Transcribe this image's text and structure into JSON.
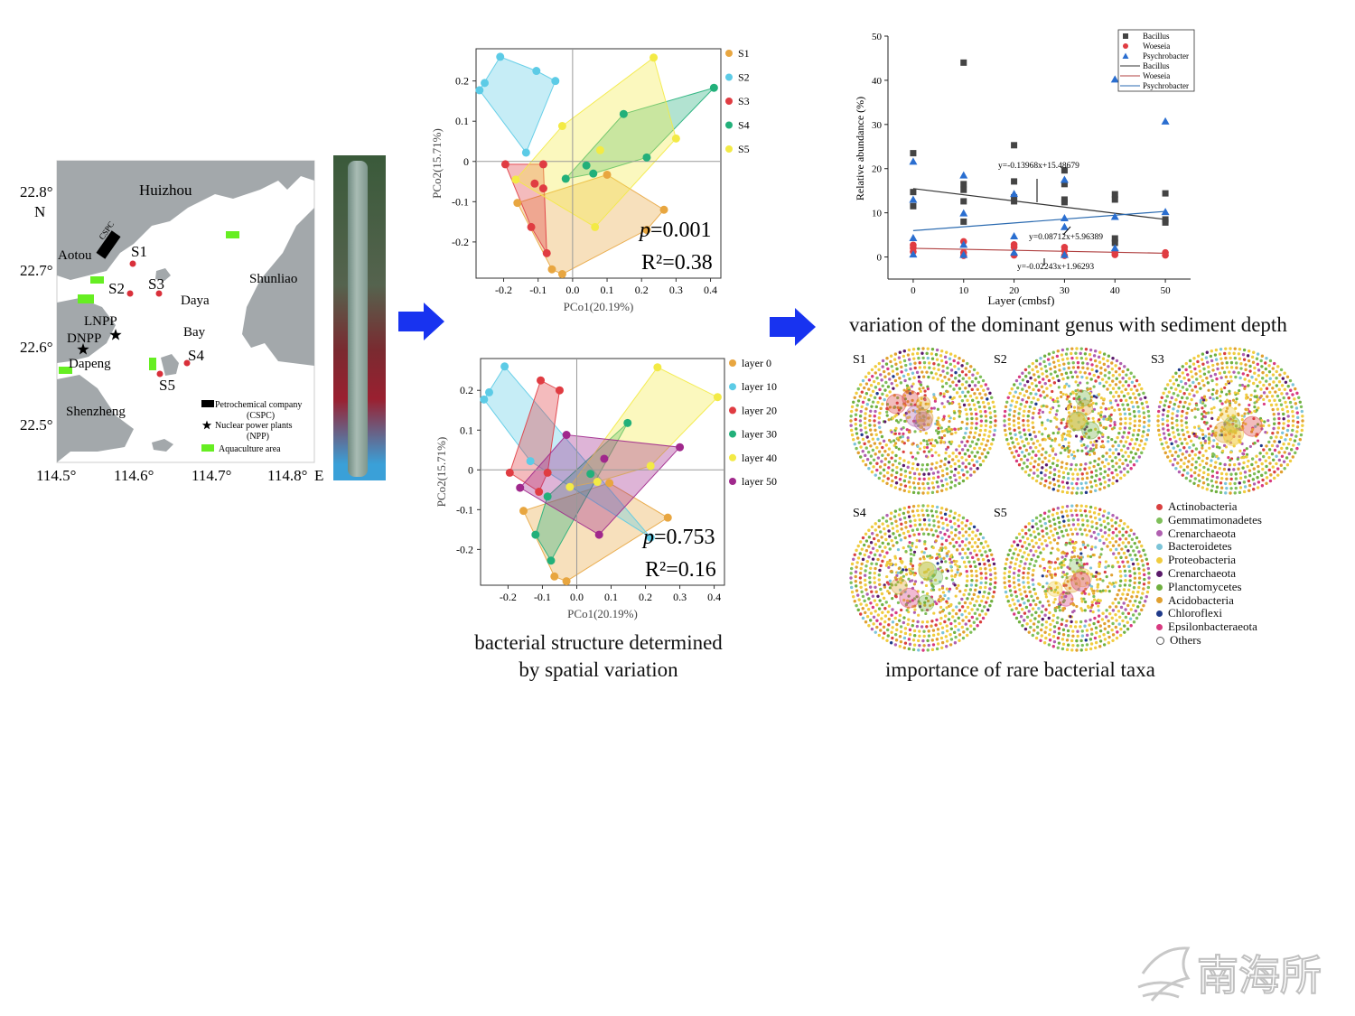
{
  "map": {
    "place_labels": {
      "huizhou": "Huizhou",
      "aotou": "Aotou",
      "shunliao": "Shunliao",
      "daya": "Daya",
      "bay": "Bay",
      "lnpp": "LNPP",
      "dnpp": "DNPP",
      "dapeng": "Dapeng",
      "shenzheng": "Shenzheng",
      "cspc": "CSPC"
    },
    "sites": [
      "S1",
      "S2",
      "S3",
      "S4",
      "S5"
    ],
    "lat_ticks": [
      "22.8°",
      "22.7°",
      "22.6°",
      "22.5°"
    ],
    "lat_unit": "N",
    "lon_ticks": [
      "114.5°",
      "114.6°",
      "114.7°",
      "114.8°"
    ],
    "lon_unit": "E",
    "legend": {
      "petro": "Petrochemical company",
      "petro_abbr": "(CSPC)",
      "npp": "Nuclear power plants",
      "npp_abbr": "(NPP)",
      "aqua": "Aquaculture area"
    },
    "colors": {
      "land": "#a3a8ab",
      "site": "#d9303a",
      "aqua": "#66ee22"
    }
  },
  "arrow_color": "#1833f0",
  "chart_data": [
    {
      "type": "scatter",
      "title": "",
      "xlabel": "PCo1(20.19%)",
      "ylabel": "PCo2(15.71%)",
      "xlim": [
        -0.28,
        0.43
      ],
      "ylim": [
        -0.29,
        0.28
      ],
      "xticks": [
        "-0.2",
        "-0.1",
        "0.0",
        "0.1",
        "0.2",
        "0.3",
        "0.4"
      ],
      "yticks": [
        "0.2",
        "0.1",
        "0",
        "-0.1",
        "-0.2"
      ],
      "legend_placement": "right",
      "annotation_p": "=0.001",
      "annotation_p_letter": "p",
      "annotation_r2": "R²=0.38",
      "series": [
        {
          "name": "S1",
          "color": "#e8a640",
          "points": [
            [
              0.1,
              -0.033
            ],
            [
              0.265,
              -0.12
            ],
            [
              0.215,
              -0.17
            ],
            [
              -0.03,
              -0.28
            ],
            [
              -0.06,
              -0.268
            ],
            [
              -0.16,
              -0.103
            ]
          ]
        },
        {
          "name": "S2",
          "color": "#5ccbe6",
          "points": [
            [
              -0.21,
              0.26
            ],
            [
              -0.105,
              0.225
            ],
            [
              -0.05,
              0.2
            ],
            [
              -0.255,
              0.195
            ],
            [
              -0.27,
              0.177
            ],
            [
              -0.135,
              0.022
            ]
          ]
        },
        {
          "name": "S3",
          "color": "#e03c42",
          "points": [
            [
              -0.195,
              -0.007
            ],
            [
              -0.085,
              -0.007
            ],
            [
              -0.11,
              -0.055
            ],
            [
              -0.085,
              -0.067
            ],
            [
              -0.12,
              -0.163
            ],
            [
              -0.075,
              -0.228
            ]
          ]
        },
        {
          "name": "S4",
          "color": "#22b07a",
          "points": [
            [
              0.41,
              0.183
            ],
            [
              0.148,
              0.118
            ],
            [
              0.215,
              0.01
            ],
            [
              0.04,
              -0.01
            ],
            [
              0.06,
              -0.03
            ],
            [
              -0.02,
              -0.043
            ]
          ]
        },
        {
          "name": "S5",
          "color": "#f3ea45",
          "points": [
            [
              0.235,
              0.258
            ],
            [
              0.3,
              0.057
            ],
            [
              0.08,
              0.028
            ],
            [
              -0.03,
              0.088
            ],
            [
              -0.165,
              -0.045
            ],
            [
              0.065,
              -0.163
            ]
          ]
        }
      ]
    },
    {
      "type": "scatter",
      "title": "",
      "xlabel": "PCo1(20.19%)",
      "ylabel": "PCo2(15.71%)",
      "xlim": [
        -0.28,
        0.43
      ],
      "ylim": [
        -0.29,
        0.28
      ],
      "xticks": [
        "-0.2",
        "-0.1",
        "0.0",
        "0.1",
        "0.2",
        "0.3",
        "0.4"
      ],
      "yticks": [
        "0.2",
        "0.1",
        "0",
        "-0.1",
        "-0.2"
      ],
      "legend_placement": "right",
      "annotation_p": "=0.753",
      "annotation_p_letter": "p",
      "annotation_r2": "R²=0.16",
      "series": [
        {
          "name": "layer 0",
          "color": "#e8a640",
          "points": [
            [
              0.095,
              -0.033
            ],
            [
              0.265,
              -0.12
            ],
            [
              -0.03,
              -0.28
            ],
            [
              -0.065,
              -0.268
            ],
            [
              -0.155,
              -0.103
            ]
          ]
        },
        {
          "name": "layer 10",
          "color": "#5ccbe6",
          "points": [
            [
              -0.21,
              0.26
            ],
            [
              -0.255,
              0.195
            ],
            [
              -0.27,
              0.177
            ],
            [
              -0.135,
              0.022
            ],
            [
              0.215,
              -0.17
            ]
          ]
        },
        {
          "name": "layer 20",
          "color": "#e03c42",
          "points": [
            [
              -0.105,
              0.225
            ],
            [
              -0.05,
              0.2
            ],
            [
              -0.195,
              -0.007
            ],
            [
              -0.085,
              -0.007
            ],
            [
              -0.11,
              -0.055
            ]
          ]
        },
        {
          "name": "layer 30",
          "color": "#22b07a",
          "points": [
            [
              0.148,
              0.118
            ],
            [
              0.04,
              -0.01
            ],
            [
              -0.085,
              -0.067
            ],
            [
              -0.12,
              -0.163
            ],
            [
              -0.075,
              -0.228
            ]
          ]
        },
        {
          "name": "layer 40",
          "color": "#f3ea45",
          "points": [
            [
              0.235,
              0.258
            ],
            [
              0.41,
              0.183
            ],
            [
              0.215,
              0.01
            ],
            [
              0.06,
              -0.03
            ],
            [
              -0.02,
              -0.043
            ]
          ]
        },
        {
          "name": "layer 50",
          "color": "#a0288c",
          "points": [
            [
              -0.03,
              0.088
            ],
            [
              0.3,
              0.057
            ],
            [
              0.08,
              0.028
            ],
            [
              0.065,
              -0.163
            ],
            [
              -0.165,
              -0.045
            ]
          ]
        }
      ]
    },
    {
      "type": "scatter",
      "title": "",
      "xlabel": "Layer (cmbsf)",
      "ylabel": "Relative abundance (%)",
      "xlim": [
        -5,
        55
      ],
      "ylim": [
        -5,
        50
      ],
      "xticks": [
        "0",
        "10",
        "20",
        "30",
        "40",
        "50"
      ],
      "yticks": [
        "50",
        "40",
        "30",
        "20",
        "10",
        "0"
      ],
      "legend_placement": "top-right",
      "series": [
        {
          "name": "Bacillus",
          "color": "#444444",
          "marker": "square",
          "points": [
            [
              0,
              23.5
            ],
            [
              0,
              14.7
            ],
            [
              0,
              11.5
            ],
            [
              10,
              44
            ],
            [
              10,
              16.5
            ],
            [
              10,
              15.2
            ],
            [
              10,
              12.6
            ],
            [
              10,
              8
            ],
            [
              20,
              25.3
            ],
            [
              20,
              17.1
            ],
            [
              20,
              13.5
            ],
            [
              20,
              12.6
            ],
            [
              30,
              19.6
            ],
            [
              30,
              16.5
            ],
            [
              30,
              13
            ],
            [
              30,
              12.4
            ],
            [
              40,
              14.2
            ],
            [
              40,
              13
            ],
            [
              40,
              4.2
            ],
            [
              40,
              3.2
            ],
            [
              50,
              14.4
            ],
            [
              50,
              8.5
            ],
            [
              50,
              7.8
            ]
          ]
        },
        {
          "name": "Woeseia",
          "color": "#e03c42",
          "marker": "circle",
          "points": [
            [
              0,
              2.7
            ],
            [
              0,
              2
            ],
            [
              0,
              1.2
            ],
            [
              10,
              3.5
            ],
            [
              10,
              1
            ],
            [
              10,
              0.3
            ],
            [
              20,
              2.8
            ],
            [
              20,
              2.2
            ],
            [
              20,
              0.4
            ],
            [
              30,
              2.2
            ],
            [
              30,
              1.5
            ],
            [
              30,
              0.3
            ],
            [
              40,
              1
            ],
            [
              40,
              0.5
            ],
            [
              50,
              1
            ],
            [
              50,
              0.4
            ]
          ]
        },
        {
          "name": "Psychrobacter",
          "color": "#2a6ed0",
          "marker": "triangle",
          "points": [
            [
              0,
              21.6
            ],
            [
              0,
              13
            ],
            [
              0,
              4.3
            ],
            [
              0,
              0.6
            ],
            [
              10,
              18.5
            ],
            [
              10,
              9.9
            ],
            [
              10,
              2.8
            ],
            [
              10,
              0.5
            ],
            [
              20,
              14.3
            ],
            [
              20,
              4.7
            ],
            [
              20,
              1
            ],
            [
              30,
              17.5
            ],
            [
              30,
              8.8
            ],
            [
              30,
              6.8
            ],
            [
              30,
              0.5
            ],
            [
              40,
              40.2
            ],
            [
              40,
              9.1
            ],
            [
              40,
              2
            ],
            [
              50,
              30.7
            ],
            [
              50,
              10.2
            ]
          ]
        }
      ],
      "fits": [
        {
          "name": "Bacillus",
          "color": "#333333",
          "slope": -0.13968,
          "intercept": 15.48679,
          "label": "y=-0.13968x+15.48679"
        },
        {
          "name": "Woeseia",
          "color": "#b04040",
          "slope": -0.02243,
          "intercept": 1.96293,
          "label": "y=-0.02243x+1.96293"
        },
        {
          "name": "Psychrobacter",
          "color": "#2a6ab0",
          "slope": 0.08712,
          "intercept": 5.96389,
          "label": "y=0.08712x+5.96389"
        }
      ]
    }
  ],
  "captions": {
    "pcoa_line1": "bacterial structure determined",
    "pcoa_line2": "by spatial variation",
    "depth": "variation of the dominant genus with sediment depth",
    "networks": "importance of rare bacterial taxa"
  },
  "networks": {
    "labels": [
      "S1",
      "S2",
      "S3",
      "S4",
      "S5"
    ],
    "legend": [
      {
        "name": "Actinobacteria",
        "color": "#d94040"
      },
      {
        "name": "Gemmatimonadetes",
        "color": "#7fbf5a"
      },
      {
        "name": "Crenarchaeota",
        "color": "#b060b0"
      },
      {
        "name": "Bacteroidetes",
        "color": "#7cc4d8"
      },
      {
        "name": "Proteobacteria",
        "color": "#f0cc40"
      },
      {
        "name": "Crenarchaeota",
        "color": "#5a1a6a"
      },
      {
        "name": "Planctomycetes",
        "color": "#70b040"
      },
      {
        "name": "Acidobacteria",
        "color": "#e0a030"
      },
      {
        "name": "Chloroflexi",
        "color": "#1f3a8a"
      },
      {
        "name": "Epsilonbacteraeota",
        "color": "#d83a80"
      },
      {
        "name": "Others",
        "color": "#ffffff"
      }
    ]
  },
  "watermark": "南海所"
}
